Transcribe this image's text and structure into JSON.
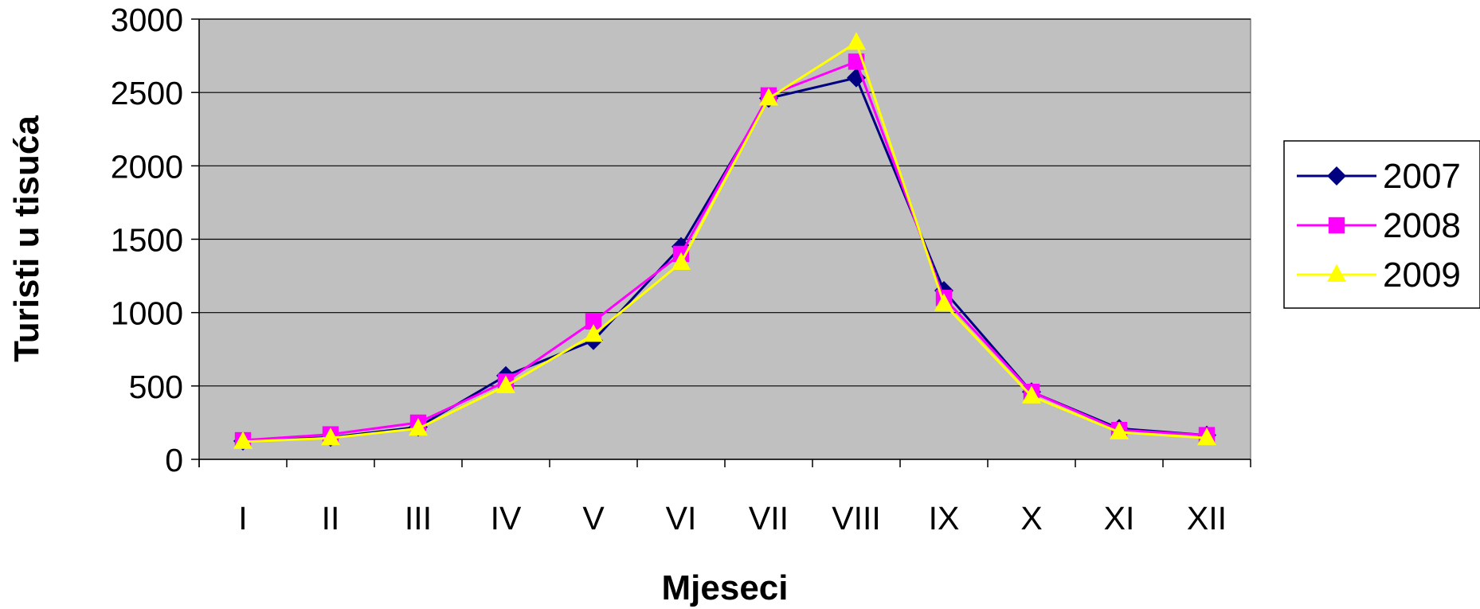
{
  "chart_data": {
    "type": "line",
    "title": "",
    "xlabel": "Mjeseci",
    "ylabel": "Turisti u tisuća",
    "categories": [
      "I",
      "II",
      "III",
      "IV",
      "V",
      "VI",
      "VII",
      "VIII",
      "IX",
      "X",
      "XI",
      "XII"
    ],
    "ylim": [
      0,
      3000
    ],
    "yticks": [
      "0",
      "500",
      "1000",
      "1500",
      "2000",
      "2500",
      "3000"
    ],
    "grid": true,
    "legend_position": "right",
    "plot_background": "#c0c0c0",
    "series": [
      {
        "name": "2007",
        "color": "#000080",
        "marker": "diamond",
        "values": [
          125,
          150,
          220,
          570,
          810,
          1450,
          2460,
          2600,
          1150,
          460,
          210,
          165
        ]
      },
      {
        "name": "2008",
        "color": "#ff00ff",
        "marker": "square",
        "values": [
          130,
          170,
          250,
          530,
          940,
          1400,
          2480,
          2710,
          1100,
          460,
          200,
          165
        ]
      },
      {
        "name": "2009",
        "color": "#ffff00",
        "marker": "triangle",
        "values": [
          120,
          145,
          210,
          500,
          850,
          1340,
          2460,
          2840,
          1060,
          430,
          185,
          145
        ]
      }
    ]
  }
}
